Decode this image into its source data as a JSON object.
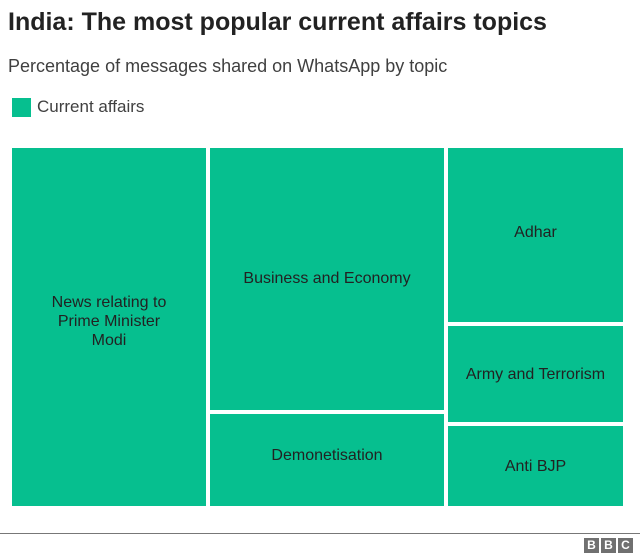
{
  "chart_data": {
    "type": "treemap",
    "title": "India: The most popular current affairs topics",
    "subtitle": "Percentage of messages shared on WhatsApp by topic",
    "legend": [
      {
        "label": "Current affairs",
        "color": "#06bf8f"
      }
    ],
    "legend_position": "top-left",
    "categories": [
      "News relating to Prime Minister Modi",
      "Business and Economy",
      "Demonetisation",
      "Adhar",
      "Army and Terrorism",
      "Anti BJP"
    ],
    "values": [
      32,
      28,
      10,
      14,
      9,
      7
    ],
    "values_note": "estimated from area"
  },
  "footer": {
    "logo_letters": [
      "B",
      "B",
      "C"
    ]
  }
}
